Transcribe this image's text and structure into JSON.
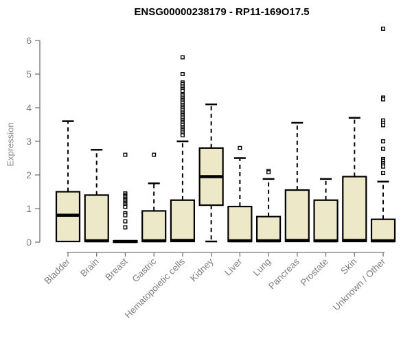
{
  "colors": {
    "background": "#ffffff",
    "box_fill": "#ede8c8",
    "box_stroke": "#000000",
    "axis": "#737373",
    "tick_label": "#7f7f7f",
    "title": "#000000"
  },
  "chart_data": {
    "type": "boxplot",
    "title": "ENSG00000238179 - RP11-169O17.5",
    "ylabel": "Expression",
    "xlabel": "",
    "ylim": [
      0,
      6
    ],
    "yticks": [
      0,
      1,
      2,
      3,
      4,
      5,
      6
    ],
    "grid": false,
    "legend": false,
    "categories": [
      "Bladder",
      "Brain",
      "Breast",
      "Gastric",
      "Hematopoietic cells",
      "Kidney",
      "Liver",
      "Lung",
      "Pancreas",
      "Prostate",
      "Skin",
      "Unknown / Other"
    ],
    "boxes": [
      {
        "category": "Bladder",
        "low": 0,
        "q1": 0.02,
        "median": 0.8,
        "q3": 1.5,
        "high": 3.6,
        "outliers": []
      },
      {
        "category": "Brain",
        "low": 0,
        "q1": 0.02,
        "median": 0.04,
        "q3": 1.4,
        "high": 2.75,
        "outliers": []
      },
      {
        "category": "Breast",
        "low": 0,
        "q1": 0,
        "median": 0.02,
        "q3": 0.04,
        "high": 0.04,
        "outliers": [
          2.6,
          1.45,
          1.41,
          1.37,
          1.33,
          1.29,
          1.25,
          1.21,
          1.17,
          1.13,
          1.09,
          1.05,
          0.86,
          0.8,
          0.62,
          0.44
        ]
      },
      {
        "category": "Gastric",
        "low": 0,
        "q1": 0.02,
        "median": 0.04,
        "q3": 0.93,
        "high": 1.75,
        "outliers": [
          2.6
        ]
      },
      {
        "category": "Hematopoietic cells",
        "low": 0,
        "q1": 0.02,
        "median": 0.05,
        "q3": 1.25,
        "high": 3.0,
        "outliers": [
          5.5,
          5.0,
          4.75,
          4.7,
          4.65,
          4.6,
          4.55,
          4.5,
          4.38,
          4.33,
          4.28,
          4.23,
          4.18,
          4.13,
          4.08,
          4.03,
          3.98,
          3.93,
          3.88,
          3.83,
          3.78,
          3.73,
          3.68,
          3.63,
          3.58,
          3.53,
          3.48,
          3.43,
          3.38,
          3.33,
          3.28,
          3.23,
          3.18
        ]
      },
      {
        "category": "Kidney",
        "low": 0.02,
        "q1": 1.1,
        "median": 1.95,
        "q3": 2.8,
        "high": 4.1,
        "outliers": []
      },
      {
        "category": "Liver",
        "low": 0,
        "q1": 0.02,
        "median": 0.04,
        "q3": 1.06,
        "high": 2.5,
        "outliers": [
          2.8
        ]
      },
      {
        "category": "Lung",
        "low": 0,
        "q1": 0.02,
        "median": 0.04,
        "q3": 0.76,
        "high": 1.88,
        "outliers": [
          2.12,
          2.08
        ]
      },
      {
        "category": "Pancreas",
        "low": 0,
        "q1": 0.02,
        "median": 0.05,
        "q3": 1.55,
        "high": 3.55,
        "outliers": []
      },
      {
        "category": "Prostate",
        "low": 0,
        "q1": 0.02,
        "median": 0.04,
        "q3": 1.25,
        "high": 1.88,
        "outliers": []
      },
      {
        "category": "Skin",
        "low": 0,
        "q1": 0.02,
        "median": 0.05,
        "q3": 1.95,
        "high": 3.7,
        "outliers": []
      },
      {
        "category": "Unknown / Other",
        "low": 0,
        "q1": 0.02,
        "median": 0.04,
        "q3": 0.68,
        "high": 1.8,
        "outliers": [
          6.35,
          4.3,
          4.25,
          3.62,
          3.55,
          3.48,
          3.0,
          2.78,
          2.47,
          2.42,
          2.35,
          2.3,
          2.25,
          2.06
        ]
      }
    ]
  }
}
